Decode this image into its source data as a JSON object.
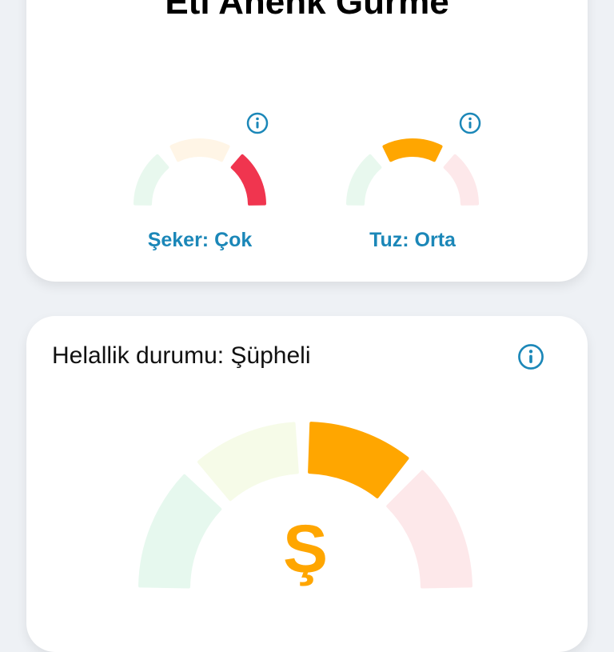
{
  "product": {
    "title": "Eti Ahenk Gurme"
  },
  "nutrients": [
    {
      "label": "Şeker: Çok",
      "level": "high",
      "active_index": 2,
      "icon": "info-icon",
      "segment_colors": [
        "#e8f8ee",
        "#fff5e6",
        "#f0354f"
      ]
    },
    {
      "label": "Tuz: Orta",
      "level": "medium",
      "active_index": 1,
      "icon": "info-icon",
      "segment_colors": [
        "#e8f8ee",
        "#ffa600",
        "#fde8ea"
      ]
    }
  ],
  "halal": {
    "heading": "Helallik durumu: Şüpheli",
    "symbol": "Ş",
    "active_index": 2,
    "icon": "info-icon",
    "segment_colors": [
      "#e6f8ee",
      "#f6fbe8",
      "#ffa600",
      "#fde8ea"
    ]
  },
  "colors": {
    "accent": "#1b87b8",
    "background": "#eef1f5",
    "warning": "#ffa600",
    "danger": "#f0354f"
  }
}
